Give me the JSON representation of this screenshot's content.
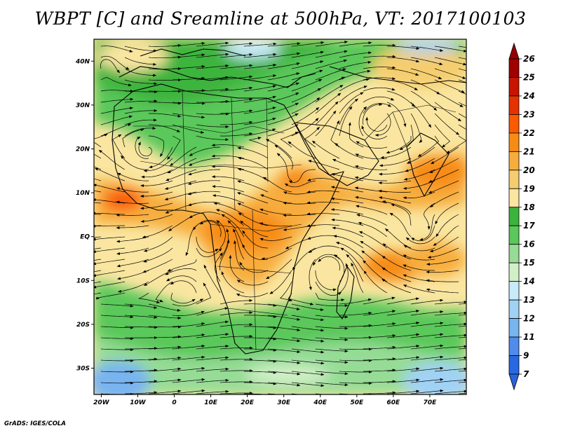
{
  "title": "WBPT [C] and Sreamline at 500hPa, VT: 2017100103",
  "credit": "GrADS: IGES/COLA",
  "map": {
    "lon_range": [
      -22,
      80
    ],
    "lat_range": [
      -36,
      45
    ],
    "lat_ticks": [
      {
        "v": 40,
        "label": "40N"
      },
      {
        "v": 30,
        "label": "30N"
      },
      {
        "v": 20,
        "label": "20N"
      },
      {
        "v": 10,
        "label": "10N"
      },
      {
        "v": 0,
        "label": "EQ"
      },
      {
        "v": -10,
        "label": "10S"
      },
      {
        "v": -20,
        "label": "20S"
      },
      {
        "v": -30,
        "label": "30S"
      }
    ],
    "lon_ticks": [
      {
        "v": -20,
        "label": "20W"
      },
      {
        "v": -10,
        "label": "10W"
      },
      {
        "v": 0,
        "label": "0"
      },
      {
        "v": 10,
        "label": "10E"
      },
      {
        "v": 20,
        "label": "20E"
      },
      {
        "v": 30,
        "label": "30E"
      },
      {
        "v": 40,
        "label": "40E"
      },
      {
        "v": 50,
        "label": "50E"
      },
      {
        "v": 60,
        "label": "60E"
      },
      {
        "v": 70,
        "label": "70E"
      }
    ]
  },
  "colorbar": {
    "labels": [
      "26",
      "25",
      "24",
      "23",
      "22",
      "21",
      "20",
      "19",
      "18",
      "17",
      "16",
      "15",
      "14",
      "13",
      "12",
      "11",
      "9",
      "7"
    ],
    "colors": [
      "#a00000",
      "#c81400",
      "#e63200",
      "#fa5a00",
      "#f78c14",
      "#f7ad3c",
      "#f5cd6e",
      "#fae6a0",
      "#3cb43c",
      "#5ac85a",
      "#96dc96",
      "#d2f0c8",
      "#c8ebfa",
      "#a0d2f5",
      "#78b4f0",
      "#508ceb",
      "#2869e1"
    ],
    "max_color": "#960000",
    "min_color": "#2864dc"
  }
}
